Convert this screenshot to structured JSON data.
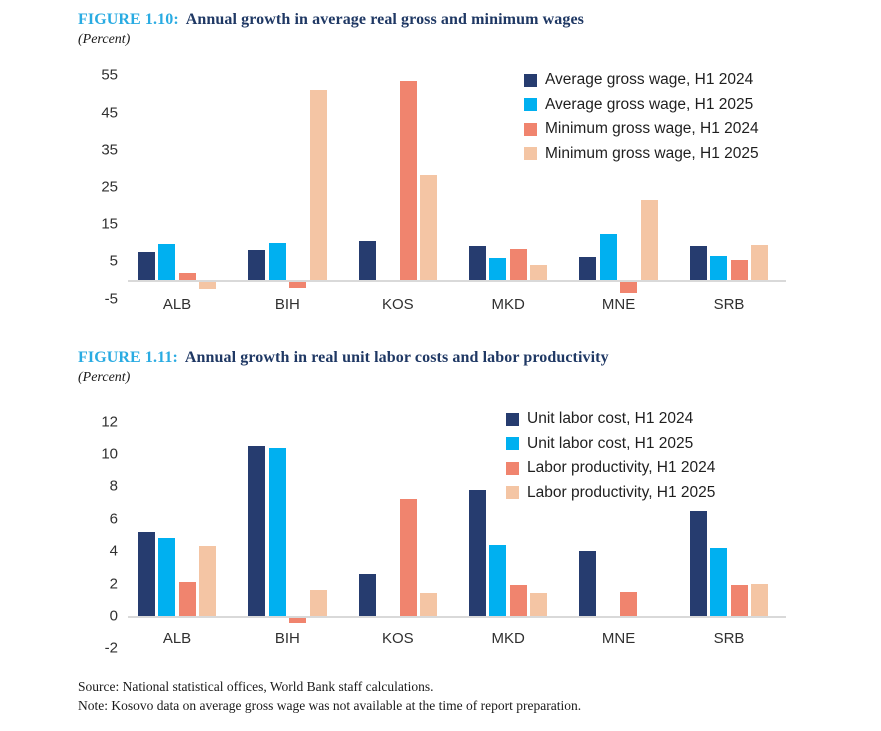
{
  "figures": [
    {
      "label": "FIGURE 1.10:",
      "title": "Annual growth in average real gross and minimum wages",
      "subtitle": "(Percent)",
      "chart_data": {
        "type": "bar",
        "categories": [
          "ALB",
          "BIH",
          "KOS",
          "MKD",
          "MNE",
          "SRB"
        ],
        "series": [
          {
            "name": "Average gross wage, H1 2024",
            "color": "#263c6f",
            "values": [
              7.6,
              8.1,
              10.5,
              9.1,
              6.3,
              9.1
            ]
          },
          {
            "name": "Average gross wage, H1 2025",
            "color": "#00b0f0",
            "values": [
              9.6,
              9.9,
              null,
              5.9,
              12.5,
              6.5
            ]
          },
          {
            "name": "Minimum gross wage, H1 2024",
            "color": "#f0846e",
            "values": [
              2.0,
              -1.7,
              53.5,
              8.4,
              -3.0,
              5.3
            ]
          },
          {
            "name": "Minimum gross wage, H1 2025",
            "color": "#f4c5a4",
            "values": [
              -2.0,
              51.0,
              28.3,
              4.1,
              21.6,
              9.3
            ]
          }
        ],
        "yticks": [
          55,
          45,
          35,
          25,
          15,
          5,
          -5
        ],
        "ylim": [
          -5,
          57.5
        ],
        "grid": false,
        "legend_position": "top-right"
      }
    },
    {
      "label": "FIGURE 1.11:",
      "title": "Annual growth in real unit labor costs and labor productivity",
      "subtitle": "(Percent)",
      "chart_data": {
        "type": "bar",
        "categories": [
          "ALB",
          "BIH",
          "KOS",
          "MKD",
          "MNE",
          "SRB"
        ],
        "series": [
          {
            "name": "Unit labor cost, H1 2024",
            "color": "#263c6f",
            "values": [
              5.2,
              10.5,
              2.6,
              7.8,
              4.0,
              6.5
            ]
          },
          {
            "name": "Unit labor cost, H1 2025",
            "color": "#00b0f0",
            "values": [
              4.8,
              10.4,
              null,
              4.4,
              null,
              4.2
            ]
          },
          {
            "name": "Labor productivity, H1 2024",
            "color": "#f0846e",
            "values": [
              2.1,
              -0.3,
              7.2,
              1.9,
              1.5,
              1.9
            ]
          },
          {
            "name": "Labor productivity, H1 2025",
            "color": "#f4c5a4",
            "values": [
              4.3,
              1.6,
              1.4,
              1.4,
              null,
              2.0
            ]
          }
        ],
        "yticks": [
          12,
          10,
          8,
          6,
          4,
          2,
          0,
          -2
        ],
        "ylim": [
          -2,
          12.4
        ],
        "grid": false,
        "legend_position": "top-right"
      }
    }
  ],
  "footer": {
    "source": "Source: National statistical offices, World Bank staff calculations.",
    "note": "Note: Kosovo data on average gross wage was not available at the time of report preparation."
  },
  "colors": {
    "figure_label": "#29abe2",
    "figure_title": "#1f3864",
    "axis_line": "#d9d9d9",
    "tick_text": "#303030"
  }
}
